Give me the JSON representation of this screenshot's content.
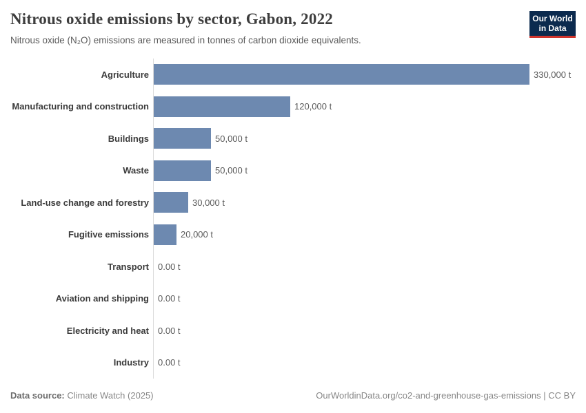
{
  "header": {
    "title": "Nitrous oxide emissions by sector, Gabon, 2022",
    "subtitle": "Nitrous oxide (N₂O) emissions are measured in tonnes of carbon dioxide equivalents."
  },
  "logo": {
    "line1": "Our World",
    "line2": "in Data",
    "bg_color": "#0b2a4e",
    "accent_color": "#d0342c"
  },
  "chart_data": {
    "type": "bar",
    "orientation": "horizontal",
    "title": "Nitrous oxide emissions by sector, Gabon, 2022",
    "subtitle": "Nitrous oxide (N₂O) emissions are measured in tonnes of carbon dioxide equivalents.",
    "unit": "tonnes of CO₂ equivalents",
    "categories": [
      "Agriculture",
      "Manufacturing and construction",
      "Buildings",
      "Waste",
      "Land-use change and forestry",
      "Fugitive emissions",
      "Transport",
      "Aviation and shipping",
      "Electricity and heat",
      "Industry"
    ],
    "values": [
      330000,
      120000,
      50000,
      50000,
      30000,
      20000,
      0,
      0,
      0,
      0
    ],
    "value_labels": [
      "330,000 t",
      "120,000 t",
      "50,000 t",
      "50,000 t",
      "30,000 t",
      "20,000 t",
      "0.00 t",
      "0.00 t",
      "0.00 t",
      "0.00 t"
    ],
    "xlim": [
      0,
      330000
    ],
    "bar_color": "#6d89b0",
    "grid": false,
    "legend": "none"
  },
  "footer": {
    "source_label": "Data source:",
    "source_value": "Climate Watch (2025)",
    "url": "OurWorldinData.org/co2-and-greenhouse-gas-emissions",
    "license": "CC BY",
    "separator": " | "
  }
}
